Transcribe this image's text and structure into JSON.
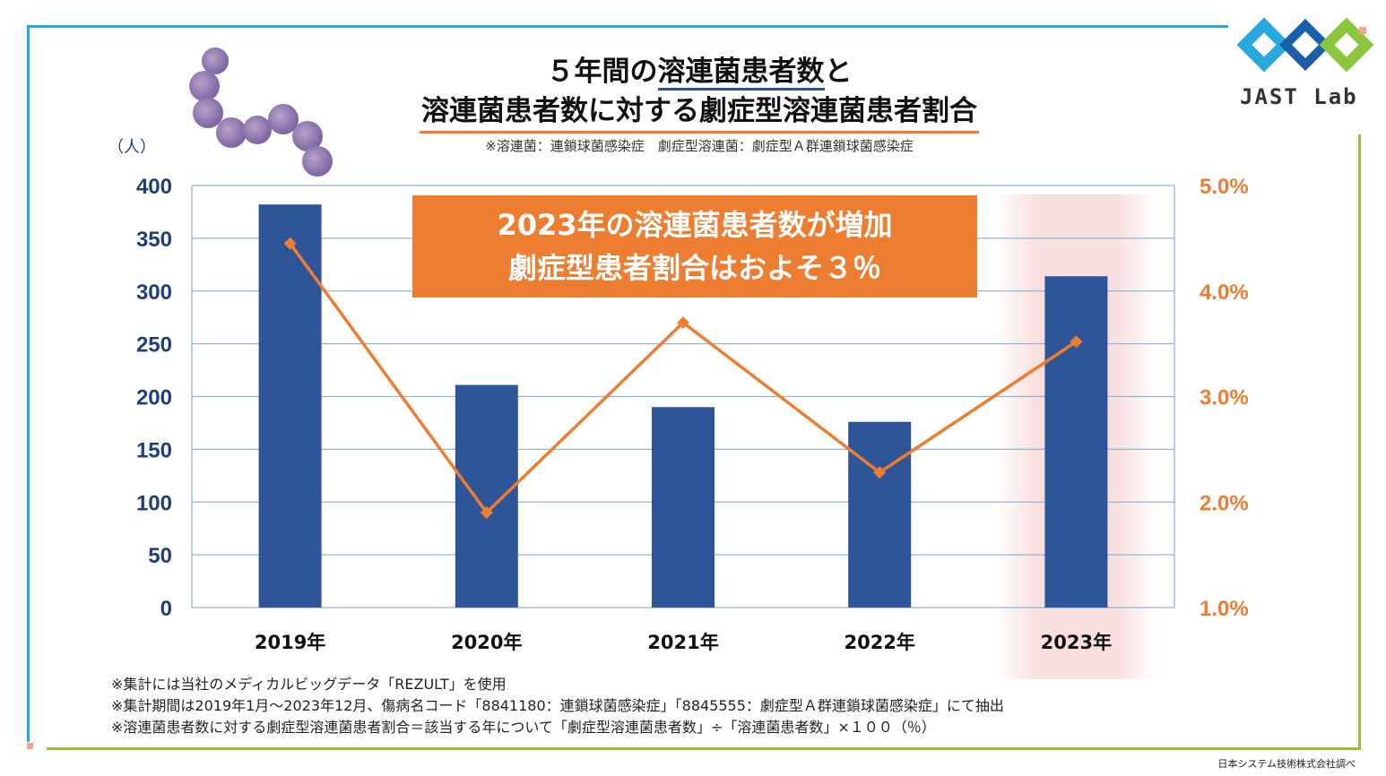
{
  "header": {
    "title_line1_pre": "５年間の",
    "title_line1_u": "溶連菌患者数",
    "title_line1_post": "と",
    "title_line2": "溶連菌患者数に対する劇症型溶連菌患者割合",
    "subnote": "※溶連菌：連鎖球菌感染症　劇症型溶連菌：劇症型Ａ群連鎖球菌感染症"
  },
  "callout": {
    "line1": "2023年の溶連菌患者数が増加",
    "line2": "劇症型患者割合はおよそ３％"
  },
  "unit_label": "（人）",
  "notes": [
    "※集計には当社のメディカルビッグデータ「REZULT」を使用",
    "※集計期間は2019年1月～2023年12月、傷病名コード「8841180：連鎖球菌感染症」「8845555：劇症型Ａ群連鎖球菌感染症」にて抽出",
    "※溶連菌患者数に対する劇症型溶連菌患者割合＝該当する年について「劇症型溶連菌患者数」÷「溶連菌患者数」×１００（％）"
  ],
  "credit": "日本システム技術株式会社調べ",
  "logo_text": "JAST Lab",
  "colors": {
    "bar": "#2e5597",
    "line": "#ed7d31",
    "axis_left": "#1f3f7a",
    "axis_right": "#ed7d31",
    "highlight": "#f8d7d7"
  },
  "chart_data": {
    "type": "bar",
    "categories": [
      "2019年",
      "2020年",
      "2021年",
      "2022年",
      "2023年"
    ],
    "series": [
      {
        "name": "溶連菌患者数",
        "type": "bar",
        "axis": "left",
        "values": [
          382,
          211,
          190,
          176,
          314
        ]
      },
      {
        "name": "劇症型溶連菌患者割合",
        "type": "line",
        "axis": "right",
        "values": [
          4.45,
          1.9,
          3.7,
          2.28,
          3.52
        ]
      }
    ],
    "ylim": [
      0,
      400
    ],
    "yticks": [
      0,
      50,
      100,
      150,
      200,
      250,
      300,
      350,
      400
    ],
    "ytick_labels": [
      "0",
      "50",
      "100",
      "150",
      "200",
      "250",
      "300",
      "350",
      "400"
    ],
    "y2lim": [
      1.0,
      5.0
    ],
    "y2ticks": [
      1,
      2,
      3,
      4,
      5
    ],
    "y2tick_labels": [
      "1.0%",
      "2.0%",
      "3.0%",
      "4.0%",
      "5.0%"
    ],
    "highlight_category": "2023年",
    "grid": true
  }
}
